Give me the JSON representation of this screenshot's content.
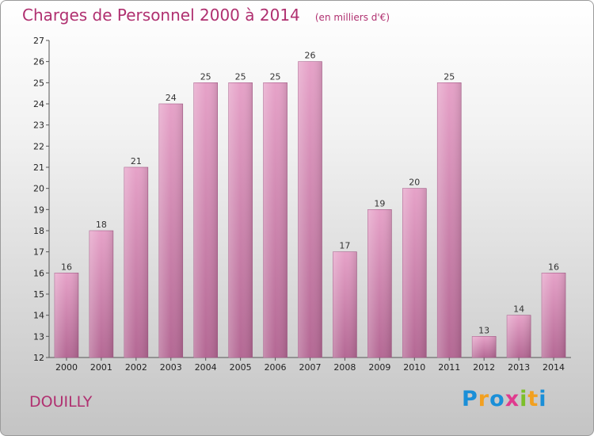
{
  "title": "Charges de Personnel 2000 à 2014",
  "subtitle": "(en milliers d'€)",
  "commune": "DOUILLY",
  "logo": {
    "letters": [
      {
        "ch": "P",
        "color": "#1a8fd8"
      },
      {
        "ch": "r",
        "color": "#f2a020"
      },
      {
        "ch": "o",
        "color": "#1a8fd8"
      },
      {
        "ch": "x",
        "color": "#e03a8e"
      },
      {
        "ch": "i",
        "color": "#7cbf2a"
      },
      {
        "ch": "t",
        "color": "#f2a020"
      },
      {
        "ch": "i",
        "color": "#1a8fd8"
      }
    ]
  },
  "chart_data": {
    "type": "bar",
    "title": "Charges de Personnel 2000 à 2014",
    "subtitle": "(en milliers d'€)",
    "categories": [
      "2000",
      "2001",
      "2002",
      "2003",
      "2004",
      "2005",
      "2006",
      "2007",
      "2008",
      "2009",
      "2010",
      "2011",
      "2012",
      "2013",
      "2014"
    ],
    "values": [
      16,
      18,
      21,
      24,
      25,
      25,
      25,
      26,
      17,
      19,
      20,
      25,
      13,
      14,
      16
    ],
    "ylim": [
      12,
      27
    ],
    "yticks": [
      12,
      13,
      14,
      15,
      16,
      17,
      18,
      19,
      20,
      21,
      22,
      23,
      24,
      25,
      26,
      27
    ],
    "grid": false,
    "bar_color": "#d98cb6",
    "bar_color_dark": "#b96a98"
  }
}
